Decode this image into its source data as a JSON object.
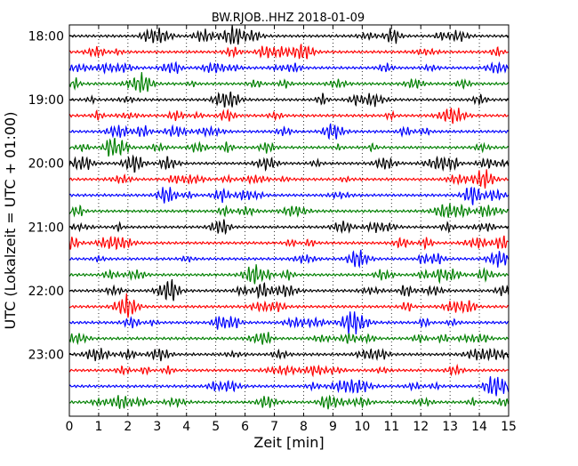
{
  "chart_data": {
    "type": "line",
    "title": "BW.RJOB..HHZ 2018-01-09",
    "xlabel": "Zeit  [min]",
    "ylabel": "UTC (Lokalzeit = UTC + 01:00)",
    "xlim": [
      0,
      15
    ],
    "x_ticks": [
      "0",
      "1",
      "2",
      "3",
      "4",
      "5",
      "6",
      "7",
      "8",
      "9",
      "10",
      "11",
      "12",
      "13",
      "14",
      "15"
    ],
    "y_ticks": [
      {
        "label": "18:00",
        "trace": 0
      },
      {
        "label": "19:00",
        "trace": 4
      },
      {
        "label": "20:00",
        "trace": 8
      },
      {
        "label": "21:00",
        "trace": 12
      },
      {
        "label": "22:00",
        "trace": 16
      },
      {
        "label": "23:00",
        "trace": 20
      }
    ],
    "trace_interval_minutes": 15,
    "trace_count": 24,
    "trace_colors": [
      "#000000",
      "#ff0000",
      "#0000ff",
      "#008000"
    ],
    "grid": {
      "x": "dotted-vertical",
      "y": false
    },
    "legend": false
  }
}
